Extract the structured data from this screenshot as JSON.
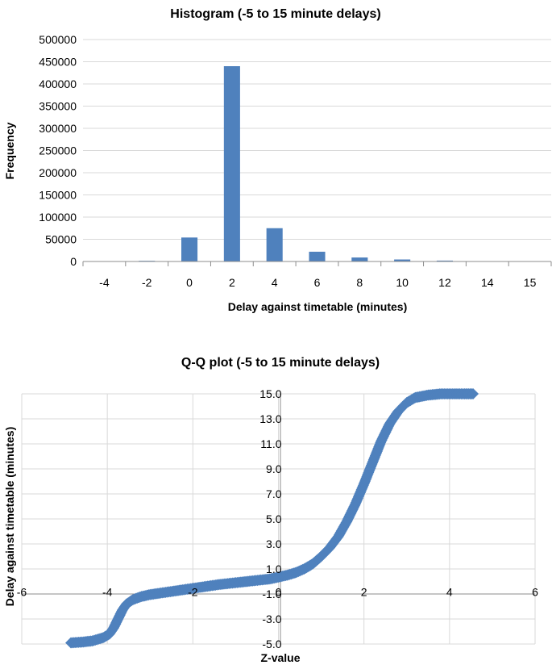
{
  "chart_data": [
    {
      "type": "bar",
      "title": "Histogram (-5 to 15 minute delays)",
      "xlabel": "Delay against timetable (minutes)",
      "ylabel": "Frequency",
      "categories": [
        "-4",
        "-2",
        "0",
        "2",
        "4",
        "6",
        "8",
        "10",
        "12",
        "14",
        "15"
      ],
      "values": [
        500,
        1500,
        54000,
        440000,
        75000,
        22000,
        9000,
        4500,
        2000,
        700,
        300
      ],
      "ylim": [
        0,
        500000
      ],
      "yticks": [
        "0",
        "50000",
        "100000",
        "150000",
        "200000",
        "250000",
        "300000",
        "350000",
        "400000",
        "450000",
        "500000"
      ],
      "color": "#4f81bd",
      "grid": "horizontal"
    },
    {
      "type": "scatter",
      "title": "Q-Q plot (-5 to 15 minute delays)",
      "xlabel": "Z-value",
      "ylabel": "Delay against timetable (minutes)",
      "xlim": [
        -6,
        6
      ],
      "ylim": [
        -5,
        15
      ],
      "xticks": [
        "-6",
        "-4",
        "-2",
        "0",
        "2",
        "4",
        "6"
      ],
      "yticks": [
        "-5.0",
        "-3.0",
        "-1.0",
        "1.0",
        "3.0",
        "5.0",
        "7.0",
        "9.0",
        "11.0",
        "13.0",
        "15.0"
      ],
      "marker": "diamond",
      "color": "#4f81bd",
      "grid": "both",
      "points": [
        [
          -4.85,
          -4.9
        ],
        [
          -4.6,
          -4.85
        ],
        [
          -4.35,
          -4.75
        ],
        [
          -4.1,
          -4.5
        ],
        [
          -3.95,
          -4.2
        ],
        [
          -3.85,
          -3.7
        ],
        [
          -3.75,
          -3.0
        ],
        [
          -3.65,
          -2.3
        ],
        [
          -3.55,
          -1.8
        ],
        [
          -3.4,
          -1.45
        ],
        [
          -3.2,
          -1.2
        ],
        [
          -3.0,
          -1.05
        ],
        [
          -2.6,
          -0.85
        ],
        [
          -2.2,
          -0.65
        ],
        [
          -1.8,
          -0.45
        ],
        [
          -1.4,
          -0.25
        ],
        [
          -1.0,
          -0.1
        ],
        [
          -0.6,
          0.05
        ],
        [
          -0.2,
          0.2
        ],
        [
          0.0,
          0.35
        ],
        [
          0.2,
          0.5
        ],
        [
          0.4,
          0.7
        ],
        [
          0.6,
          1.0
        ],
        [
          0.8,
          1.4
        ],
        [
          1.0,
          2.0
        ],
        [
          1.2,
          2.7
        ],
        [
          1.4,
          3.6
        ],
        [
          1.6,
          4.8
        ],
        [
          1.8,
          6.2
        ],
        [
          2.0,
          7.8
        ],
        [
          2.2,
          9.5
        ],
        [
          2.4,
          11.2
        ],
        [
          2.6,
          12.6
        ],
        [
          2.8,
          13.6
        ],
        [
          3.0,
          14.3
        ],
        [
          3.2,
          14.7
        ],
        [
          3.5,
          14.9
        ],
        [
          3.8,
          15.0
        ],
        [
          4.1,
          15.0
        ],
        [
          4.35,
          15.0
        ],
        [
          4.55,
          15.0
        ]
      ]
    }
  ]
}
